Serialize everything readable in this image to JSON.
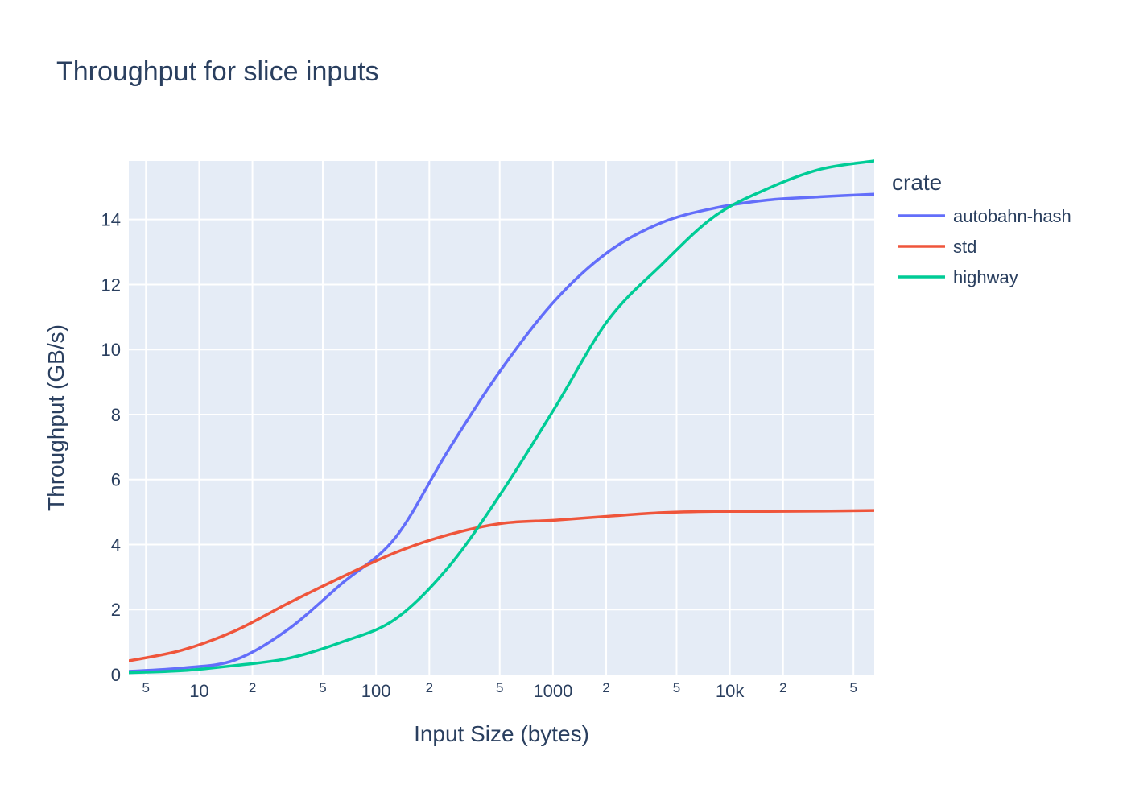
{
  "chart_data": {
    "type": "line",
    "title": "Throughput for slice inputs",
    "xlabel": "Input Size (bytes)",
    "ylabel": "Throughput (GB/s)",
    "xscale": "log",
    "xlim": [
      4,
      65536
    ],
    "ylim": [
      0,
      15.8
    ],
    "grid": true,
    "legend": {
      "title": "crate",
      "placement": "right"
    },
    "x_ticks": [
      {
        "value": 5,
        "label": "5",
        "major": false
      },
      {
        "value": 10,
        "label": "10",
        "major": true
      },
      {
        "value": 20,
        "label": "2",
        "major": false
      },
      {
        "value": 50,
        "label": "5",
        "major": false
      },
      {
        "value": 100,
        "label": "100",
        "major": true
      },
      {
        "value": 200,
        "label": "2",
        "major": false
      },
      {
        "value": 500,
        "label": "5",
        "major": false
      },
      {
        "value": 1000,
        "label": "1000",
        "major": true
      },
      {
        "value": 2000,
        "label": "2",
        "major": false
      },
      {
        "value": 5000,
        "label": "5",
        "major": false
      },
      {
        "value": 10000,
        "label": "10k",
        "major": true
      },
      {
        "value": 20000,
        "label": "2",
        "major": false
      },
      {
        "value": 50000,
        "label": "5",
        "major": false
      }
    ],
    "y_ticks": [
      {
        "value": 0,
        "label": "0"
      },
      {
        "value": 2,
        "label": "2"
      },
      {
        "value": 4,
        "label": "4"
      },
      {
        "value": 6,
        "label": "6"
      },
      {
        "value": 8,
        "label": "8"
      },
      {
        "value": 10,
        "label": "10"
      },
      {
        "value": 12,
        "label": "12"
      },
      {
        "value": 14,
        "label": "14"
      }
    ],
    "series": [
      {
        "name": "autobahn-hash",
        "color": "#636efa",
        "x": [
          4,
          8,
          16,
          32,
          64,
          128,
          256,
          512,
          1024,
          2048,
          4096,
          8192,
          16384,
          32768,
          65536
        ],
        "y": [
          0.1,
          0.2,
          0.45,
          1.4,
          2.8,
          4.2,
          6.9,
          9.4,
          11.5,
          13.0,
          13.9,
          14.35,
          14.6,
          14.7,
          14.78
        ]
      },
      {
        "name": "std",
        "color": "#ef553b",
        "x": [
          4,
          8,
          16,
          32,
          64,
          128,
          256,
          512,
          1024,
          2048,
          4096,
          8192,
          16384,
          32768,
          65536
        ],
        "y": [
          0.42,
          0.75,
          1.35,
          2.2,
          3.0,
          3.75,
          4.3,
          4.65,
          4.75,
          4.87,
          4.98,
          5.02,
          5.02,
          5.03,
          5.05
        ]
      },
      {
        "name": "highway",
        "color": "#00cc96",
        "x": [
          4,
          8,
          16,
          32,
          64,
          128,
          256,
          512,
          1024,
          2048,
          4096,
          8192,
          16384,
          32768,
          65536
        ],
        "y": [
          0.06,
          0.12,
          0.28,
          0.5,
          1.0,
          1.7,
          3.3,
          5.6,
          8.2,
          10.9,
          12.6,
          14.1,
          14.95,
          15.55,
          15.8
        ]
      }
    ]
  }
}
